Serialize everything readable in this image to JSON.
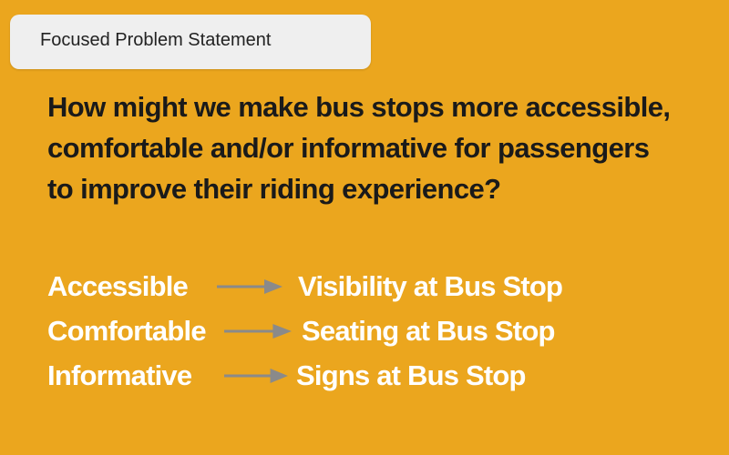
{
  "label": "Focused Problem Statement",
  "question": {
    "lines": [
      "How might we make bus stops more accessible,",
      "comfortable and/or informative for passengers",
      "to improve their riding experience?"
    ]
  },
  "mappings": [
    {
      "term": "Accessible",
      "feature": "Visibility at Bus Stop"
    },
    {
      "term": "Comfortable",
      "feature": "Seating at Bus Stop"
    },
    {
      "term": "Informative",
      "feature": "Signs at Bus Stop"
    }
  ],
  "colors": {
    "background": "#EBA61E",
    "label_box": "#EFEFEF",
    "question_text": "#1A1A1A",
    "mapping_text": "#FFFFFF",
    "arrow": "#8A8A8A"
  }
}
